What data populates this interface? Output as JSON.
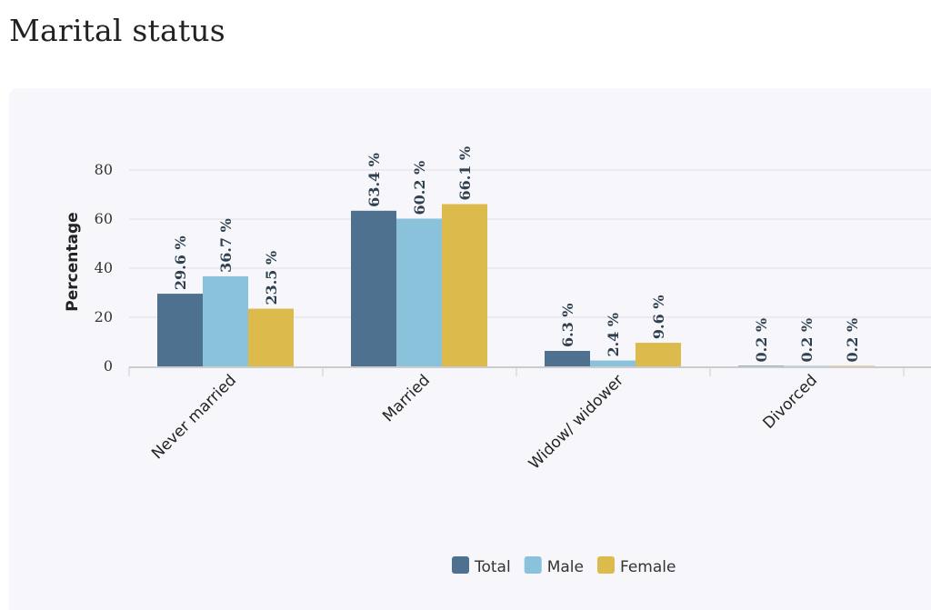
{
  "page": {
    "title": "Marital status"
  },
  "chart_data": {
    "type": "bar",
    "ylabel": "Percentage",
    "ylim": [
      0,
      80
    ],
    "yticks": [
      0,
      20,
      40,
      60,
      80
    ],
    "categories": [
      "Never married",
      "Married",
      "Widow/ widower",
      "Divorced"
    ],
    "series": [
      {
        "name": "Total",
        "color": "#4e7190",
        "values": [
          29.6,
          63.4,
          6.3,
          0.2
        ],
        "labels": [
          "29.6 %",
          "63.4 %",
          "6.3 %",
          "0.2 %"
        ]
      },
      {
        "name": "Male",
        "color": "#8ac2db",
        "values": [
          36.7,
          60.2,
          2.4,
          0.2
        ],
        "labels": [
          "36.7 %",
          "60.2 %",
          "2.4 %",
          "0.2 %"
        ]
      },
      {
        "name": "Female",
        "color": "#dcbb4c",
        "values": [
          23.5,
          66.1,
          9.6,
          0.2
        ],
        "labels": [
          "23.5 %",
          "66.1 %",
          "9.6 %",
          "0.2 %"
        ]
      }
    ],
    "grid": true,
    "legend": "bottom-center"
  }
}
